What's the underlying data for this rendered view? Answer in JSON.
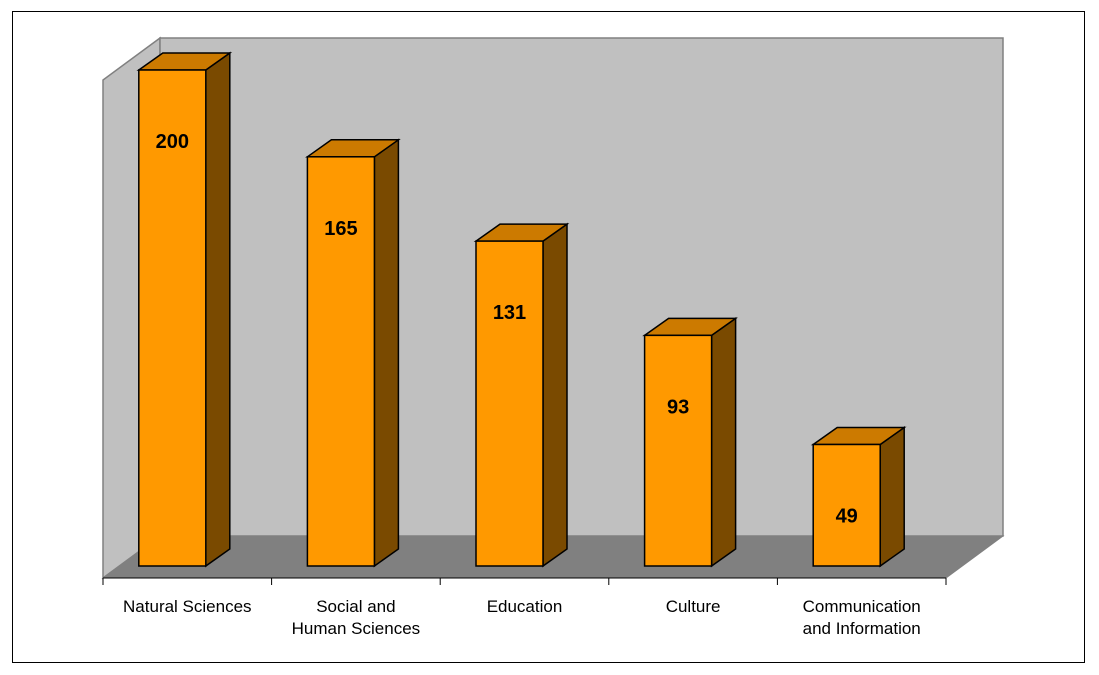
{
  "chart_data": {
    "type": "bar",
    "categories": [
      [
        "Natural Sciences"
      ],
      [
        "Social and",
        "Human Sciences"
      ],
      [
        "Education"
      ],
      [
        "Culture"
      ],
      [
        "Communication",
        "and Information"
      ]
    ],
    "values": [
      200,
      165,
      131,
      93,
      49
    ],
    "ylim": [
      0,
      200
    ],
    "grid": false,
    "legend": "none",
    "style": "3d-column"
  },
  "colors": {
    "bar_front": "#FF9900",
    "bar_top": "#CC7A00",
    "bar_side": "#7A4A00",
    "back_wall": "#C0C0C0",
    "floor": "#808080",
    "side_wall": "#C0C0C0"
  }
}
